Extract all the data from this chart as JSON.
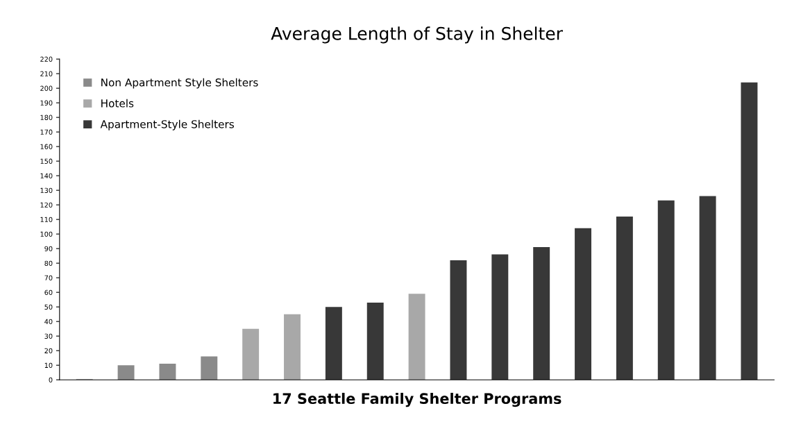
{
  "chart_data": {
    "type": "bar",
    "title": "Average Length of Stay in Shelter",
    "xlabel": "17 Seattle Family Shelter Programs",
    "categories": [
      null,
      null,
      null,
      null,
      null,
      null,
      null,
      null,
      null,
      null,
      null,
      null,
      null,
      null,
      null,
      null,
      null
    ],
    "series": [
      {
        "name": "Non Apartment Style Shelters",
        "color": "#8a8a8a",
        "values": [
          0.5,
          10,
          11,
          16,
          null,
          null,
          null,
          null,
          null,
          null,
          null,
          null,
          null,
          null,
          null,
          null,
          null
        ]
      },
      {
        "name": "Hotels",
        "color": "#a8a8a8",
        "values": [
          null,
          null,
          null,
          null,
          35,
          45,
          null,
          null,
          59,
          null,
          null,
          null,
          null,
          null,
          null,
          null,
          null
        ]
      },
      {
        "name": "Apartment-Style Shelters",
        "color": "#383838",
        "values": [
          null,
          null,
          null,
          null,
          null,
          null,
          50,
          53,
          null,
          82,
          86,
          91,
          104,
          112,
          123,
          126,
          204
        ]
      }
    ],
    "ylim": [
      0,
      220
    ],
    "yticks": [
      0,
      10,
      20,
      30,
      40,
      50,
      60,
      70,
      80,
      90,
      100,
      110,
      120,
      130,
      140,
      150,
      160,
      170,
      180,
      190,
      200,
      210,
      220
    ],
    "grid": false,
    "legend": "top left"
  }
}
